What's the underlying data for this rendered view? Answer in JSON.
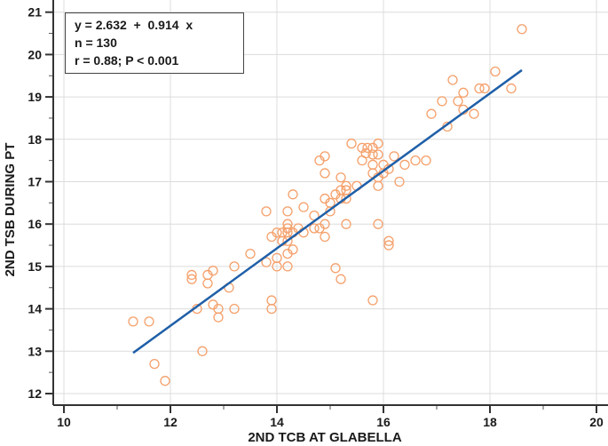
{
  "chart_data": {
    "type": "scatter",
    "title": "",
    "xlabel": "2ND TCB AT GLABELLA",
    "ylabel": "2ND TSB DURING PT",
    "xlim": [
      10,
      20
    ],
    "ylim": [
      12,
      21
    ],
    "xticks": [
      "10",
      "12",
      "14",
      "16",
      "18",
      "20"
    ],
    "yticks": [
      "12",
      "13",
      "14",
      "15",
      "16",
      "17",
      "18",
      "19",
      "20",
      "21"
    ],
    "grid": true,
    "colors": {
      "points": "#f5a06b",
      "fit_line": "#1f5fa8"
    },
    "annotation": {
      "equation": "y = 2.632  +  0.914  x",
      "n": "n = 130",
      "r": "r = 0.88; P < 0.001"
    },
    "fit": {
      "intercept": 2.632,
      "slope": 0.914,
      "x_range": [
        11.3,
        18.6
      ]
    },
    "points": [
      [
        11.3,
        13.7
      ],
      [
        11.6,
        13.7
      ],
      [
        11.7,
        12.7
      ],
      [
        11.9,
        12.3
      ],
      [
        12.6,
        13.0
      ],
      [
        12.4,
        14.8
      ],
      [
        12.4,
        14.7
      ],
      [
        12.5,
        14.0
      ],
      [
        12.7,
        14.8
      ],
      [
        12.7,
        14.6
      ],
      [
        12.8,
        14.9
      ],
      [
        12.8,
        14.1
      ],
      [
        12.9,
        14.0
      ],
      [
        12.9,
        13.8
      ],
      [
        13.1,
        14.5
      ],
      [
        13.2,
        15.0
      ],
      [
        13.2,
        14.0
      ],
      [
        13.5,
        15.3
      ],
      [
        13.8,
        15.1
      ],
      [
        13.8,
        16.3
      ],
      [
        13.9,
        15.7
      ],
      [
        13.9,
        14.2
      ],
      [
        13.9,
        14.0
      ],
      [
        14.0,
        15.2
      ],
      [
        14.0,
        15.0
      ],
      [
        14.2,
        15.0
      ],
      [
        14.0,
        15.8
      ],
      [
        14.1,
        15.8
      ],
      [
        14.1,
        15.6
      ],
      [
        14.2,
        15.6
      ],
      [
        14.2,
        15.9
      ],
      [
        14.2,
        15.8
      ],
      [
        14.2,
        16.0
      ],
      [
        14.2,
        16.3
      ],
      [
        14.3,
        15.4
      ],
      [
        14.2,
        15.3
      ],
      [
        14.3,
        16.7
      ],
      [
        14.3,
        15.8
      ],
      [
        14.4,
        15.9
      ],
      [
        14.5,
        16.4
      ],
      [
        14.5,
        15.8
      ],
      [
        14.7,
        16.2
      ],
      [
        14.7,
        15.9
      ],
      [
        14.8,
        15.9
      ],
      [
        14.9,
        16.0
      ],
      [
        14.9,
        15.7
      ],
      [
        14.8,
        17.5
      ],
      [
        14.9,
        17.6
      ],
      [
        14.9,
        17.2
      ],
      [
        14.9,
        16.6
      ],
      [
        15.0,
        16.5
      ],
      [
        15.0,
        16.3
      ],
      [
        15.1,
        16.7
      ],
      [
        15.2,
        16.8
      ],
      [
        15.2,
        16.6
      ],
      [
        15.3,
        16.6
      ],
      [
        15.3,
        16.9
      ],
      [
        15.3,
        16.8
      ],
      [
        15.2,
        17.1
      ],
      [
        15.3,
        16.0
      ],
      [
        15.5,
        16.9
      ],
      [
        15.1,
        14.96
      ],
      [
        15.2,
        14.7
      ],
      [
        15.4,
        17.9
      ],
      [
        15.6,
        17.8
      ],
      [
        15.7,
        17.8
      ],
      [
        15.8,
        17.8
      ],
      [
        15.9,
        17.9
      ],
      [
        15.67,
        17.67
      ],
      [
        15.8,
        17.64
      ],
      [
        15.9,
        17.64
      ],
      [
        15.6,
        17.5
      ],
      [
        15.8,
        17.4
      ],
      [
        16.0,
        17.4
      ],
      [
        16.2,
        17.6
      ],
      [
        16.1,
        17.3
      ],
      [
        16.0,
        17.2
      ],
      [
        15.8,
        17.2
      ],
      [
        15.9,
        17.1
      ],
      [
        15.9,
        16.9
      ],
      [
        16.4,
        17.4
      ],
      [
        16.6,
        17.5
      ],
      [
        16.8,
        17.5
      ],
      [
        16.3,
        17.0
      ],
      [
        15.9,
        16.0
      ],
      [
        16.1,
        15.6
      ],
      [
        16.1,
        15.5
      ],
      [
        15.8,
        14.2
      ],
      [
        16.9,
        18.6
      ],
      [
        17.2,
        18.3
      ],
      [
        17.7,
        18.6
      ],
      [
        17.5,
        18.7
      ],
      [
        17.1,
        18.9
      ],
      [
        17.4,
        18.9
      ],
      [
        17.5,
        19.1
      ],
      [
        17.3,
        19.4
      ],
      [
        17.8,
        19.2
      ],
      [
        17.9,
        19.2
      ],
      [
        18.4,
        19.2
      ],
      [
        18.1,
        19.6
      ],
      [
        18.6,
        20.6
      ]
    ]
  }
}
